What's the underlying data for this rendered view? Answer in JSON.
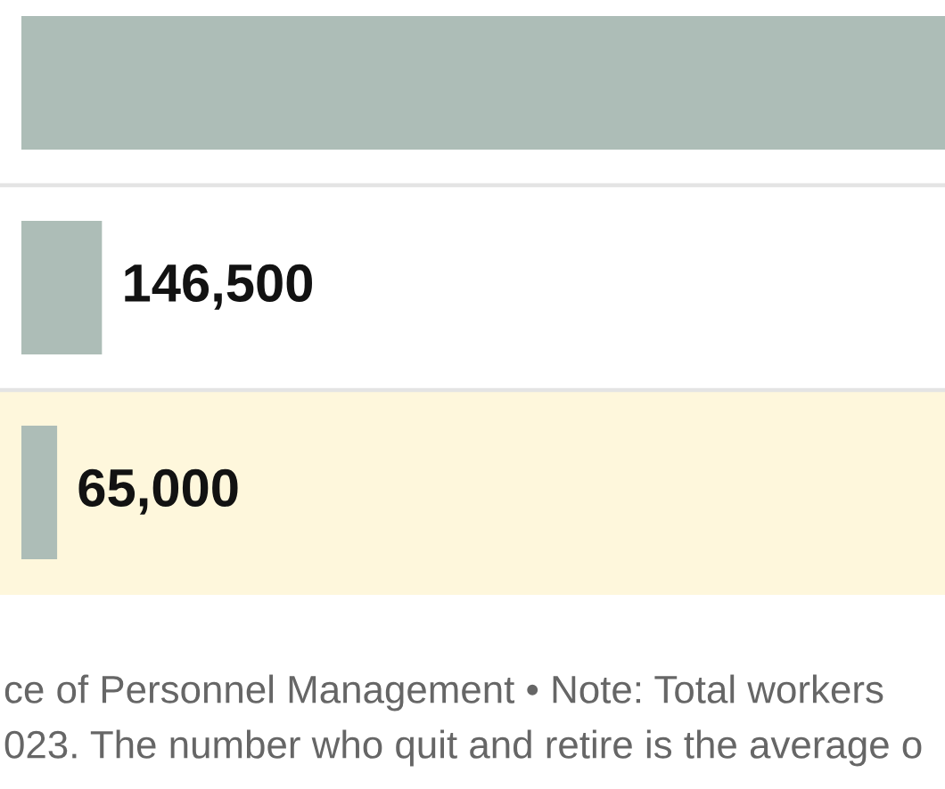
{
  "chart_data": {
    "type": "bar",
    "orientation": "horizontal",
    "categories": [
      null,
      null,
      null
    ],
    "values": [
      1680000,
      146500,
      65000
    ],
    "color": "#adbdb7",
    "value_labels": [
      null,
      "146,500",
      "65,000"
    ],
    "tick_labels": false,
    "annotations": [
      "ce of Personnel Management • Note: Total workers",
      "023. The number who quit and retire is the average o"
    ]
  }
}
